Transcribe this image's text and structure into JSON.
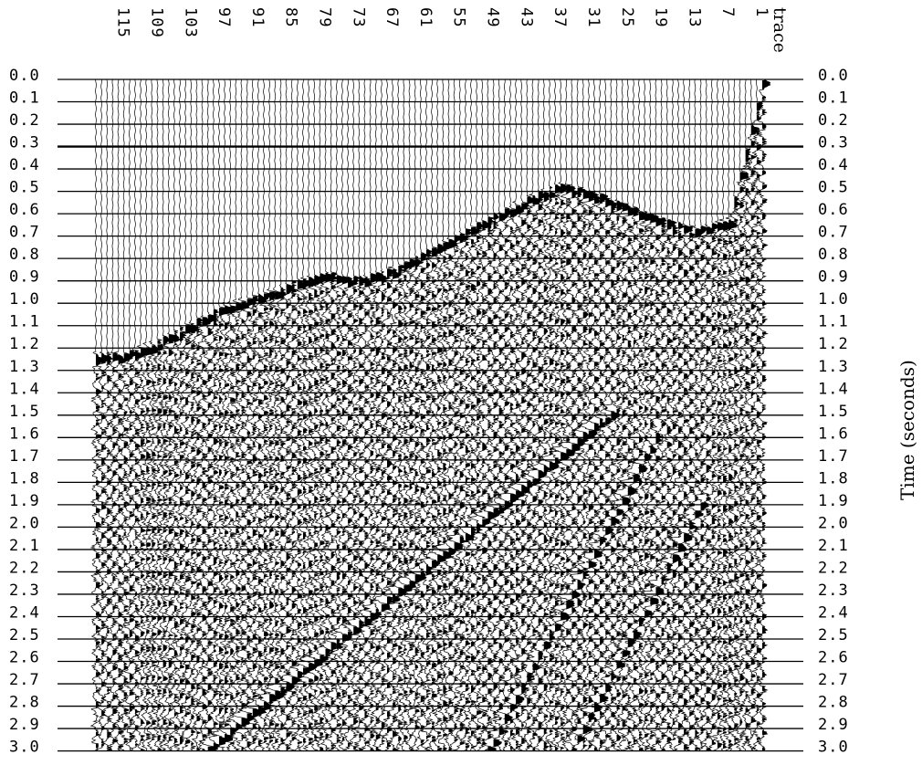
{
  "chart_data": {
    "type": "seismic-wiggle",
    "y_axis": {
      "label": "Time   (seconds)",
      "range": [
        0.0,
        3.0
      ],
      "ticks": [
        "0.0",
        "0.1",
        "0.2",
        "0.3",
        "0.4",
        "0.5",
        "0.6",
        "0.7",
        "0.8",
        "0.9",
        "1.0",
        "1.1",
        "1.2",
        "1.3",
        "1.4",
        "1.5",
        "1.6",
        "1.7",
        "1.8",
        "1.9",
        "2.0",
        "2.1",
        "2.2",
        "2.3",
        "2.4",
        "2.5",
        "2.6",
        "2.7",
        "2.8",
        "2.9",
        "3.0"
      ],
      "direction": "down",
      "shown_on": "left and right"
    },
    "x_axis": {
      "label": "trace",
      "ticks": [
        "115",
        "109",
        "103",
        "97",
        "91",
        "85",
        "79",
        "73",
        "67",
        "61",
        "55",
        "49",
        "43",
        "37",
        "31",
        "25",
        "19",
        "13",
        "7",
        "1"
      ],
      "trace_range": [
        1,
        120
      ],
      "direction": "decreasing left-to-right",
      "position": "top"
    },
    "grid": true,
    "colors": {
      "ink": "#000000",
      "background": "#ffffff"
    },
    "first_arrival_times_s": {
      "traces": [
        1,
        7,
        13,
        19,
        25,
        31,
        37,
        43,
        49,
        55,
        61,
        67,
        73,
        79,
        85,
        91,
        97,
        103,
        109,
        115
      ],
      "times": [
        0.0,
        0.62,
        0.66,
        0.62,
        0.56,
        0.5,
        0.46,
        0.52,
        0.6,
        0.68,
        0.76,
        0.84,
        0.88,
        0.86,
        0.9,
        0.96,
        1.0,
        1.08,
        1.16,
        1.22
      ]
    },
    "reflections_s": [
      {
        "trace_from": 28,
        "time_from": 1.5,
        "trace_to": 100,
        "time_to": 3.0
      },
      {
        "trace_from": 20,
        "time_from": 1.6,
        "trace_to": 50,
        "time_to": 3.0
      },
      {
        "trace_from": 12,
        "time_from": 1.9,
        "trace_to": 35,
        "time_to": 3.0
      }
    ]
  }
}
